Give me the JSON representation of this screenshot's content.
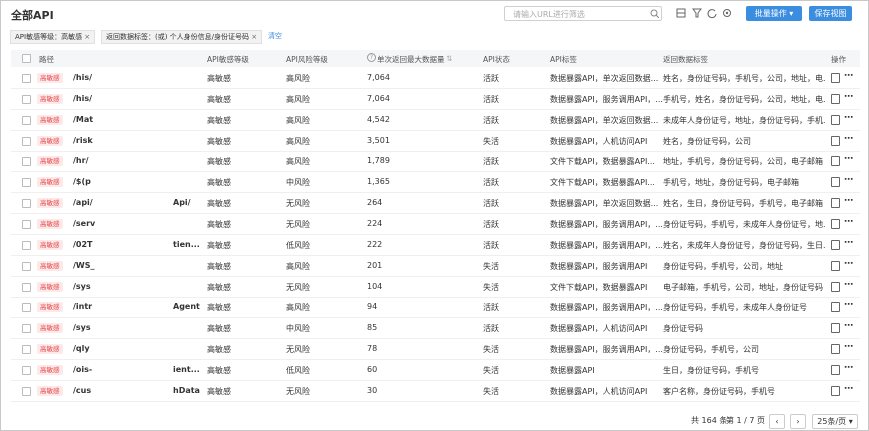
{
  "header": {
    "title": "全部API",
    "search_placeholder": "请输入URL进行筛选",
    "batch_button": "批量操作",
    "save_button": "保存视图"
  },
  "filters": {
    "tags": [
      "API敏感等级：高敏感",
      "返回数据标签：(或) 个人身份信息/身份证号码"
    ],
    "clear": "清空"
  },
  "table": {
    "headers": [
      "路径",
      "API敏感等级",
      "API风险等级",
      "单次返回最大数据量",
      "API状态",
      "API标签",
      "返回数据标签",
      "操作"
    ],
    "rows": [
      {
        "tag": "高敏感",
        "path": "/his/",
        "sensitivity": "高敏感",
        "risk": "高风险",
        "max_count": "7,064",
        "status": "活跃",
        "api_tags": "数据暴露API，单次返回数据...",
        "return_tags": "姓名，身份证号码，手机号，公司，地址，电..."
      },
      {
        "tag": "高敏感",
        "path": "/his/",
        "sensitivity": "高敏感",
        "risk": "高风险",
        "max_count": "7,064",
        "status": "活跃",
        "api_tags": "数据暴露API，服务调用API，...",
        "return_tags": "手机号，姓名，身份证号码，公司，地址，电..."
      },
      {
        "tag": "高敏感",
        "path": "/Mat",
        "sensitivity": "高敏感",
        "risk": "高风险",
        "max_count": "4,542",
        "status": "活跃",
        "api_tags": "数据暴露API，单次返回数据...",
        "return_tags": "未成年人身份证号，地址，身份证号码，手机..."
      },
      {
        "tag": "高敏感",
        "path": "/risk",
        "sensitivity": "高敏感",
        "risk": "高风险",
        "max_count": "3,501",
        "status": "失活",
        "api_tags": "数据暴露API，人机访问API",
        "return_tags": "姓名，身份证号码，公司"
      },
      {
        "tag": "高敏感",
        "path": "/hr/",
        "sensitivity": "高敏感",
        "risk": "高风险",
        "max_count": "1,789",
        "status": "活跃",
        "api_tags": "文件下载API，数据暴露API...",
        "return_tags": "地址，手机号，身份证号码，公司，电子邮箱"
      },
      {
        "tag": "高敏感",
        "path": "/$(p",
        "sensitivity": "高敏感",
        "risk": "中风险",
        "max_count": "1,365",
        "status": "活跃",
        "api_tags": "文件下载API，数据暴露API...",
        "return_tags": "手机号，地址，身份证号码，电子邮箱"
      },
      {
        "tag": "高敏感",
        "path": "/api/",
        "extra": "Api/",
        "sensitivity": "高敏感",
        "risk": "无风险",
        "max_count": "264",
        "status": "活跃",
        "api_tags": "数据暴露API，单次返回数据...",
        "return_tags": "姓名，生日，身份证号码，手机号，电子邮箱"
      },
      {
        "tag": "高敏感",
        "path": "/serv",
        "sensitivity": "高敏感",
        "risk": "无风险",
        "max_count": "224",
        "status": "活跃",
        "api_tags": "数据暴露API，服务调用API，...",
        "return_tags": "身份证号码，手机号，未成年人身份证号，地..."
      },
      {
        "tag": "高敏感",
        "path": "/02T",
        "extra": "tien...",
        "sensitivity": "高敏感",
        "risk": "低风险",
        "max_count": "222",
        "status": "活跃",
        "api_tags": "数据暴露API，服务调用API，...",
        "return_tags": "姓名，未成年人身份证号，身份证号码，生日..."
      },
      {
        "tag": "高敏感",
        "path": "/WS_",
        "sensitivity": "高敏感",
        "risk": "高风险",
        "max_count": "201",
        "status": "失活",
        "api_tags": "数据暴露API，服务调用API",
        "return_tags": "身份证号码，手机号，公司，地址"
      },
      {
        "tag": "高敏感",
        "path": "/sys",
        "sensitivity": "高敏感",
        "risk": "无风险",
        "max_count": "104",
        "status": "失活",
        "api_tags": "文件下载API，数据暴露API",
        "return_tags": "电子邮箱，手机号，公司，地址，身份证号码"
      },
      {
        "tag": "高敏感",
        "path": "/intr",
        "extra": "Agent",
        "sensitivity": "高敏感",
        "risk": "高风险",
        "max_count": "94",
        "status": "活跃",
        "api_tags": "数据暴露API，服务调用API，...",
        "return_tags": "身份证号码，手机号，未成年人身份证号"
      },
      {
        "tag": "高敏感",
        "path": "/sys",
        "sensitivity": "高敏感",
        "risk": "中风险",
        "max_count": "85",
        "status": "活跃",
        "api_tags": "数据暴露API，人机访问API",
        "return_tags": "身份证号码"
      },
      {
        "tag": "高敏感",
        "path": "/qly",
        "sensitivity": "高敏感",
        "risk": "无风险",
        "max_count": "78",
        "status": "失活",
        "api_tags": "数据暴露API，服务调用API，...",
        "return_tags": "身份证号码，手机号，公司"
      },
      {
        "tag": "高敏感",
        "path": "/ois-",
        "extra": "ient...",
        "sensitivity": "高敏感",
        "risk": "低风险",
        "max_count": "60",
        "status": "失活",
        "api_tags": "数据暴露API",
        "return_tags": "生日，身份证号码，手机号"
      },
      {
        "tag": "高敏感",
        "path": "/cus",
        "extra": "hData",
        "sensitivity": "高敏感",
        "risk": "无风险",
        "max_count": "30",
        "status": "失活",
        "api_tags": "数据暴露API，人机访问API",
        "return_tags": "客户名称，身份证号码，手机号"
      }
    ]
  },
  "pagination": {
    "total": "共 164 条",
    "page": "第 1 / 7 页",
    "page_size": "25条/页"
  }
}
